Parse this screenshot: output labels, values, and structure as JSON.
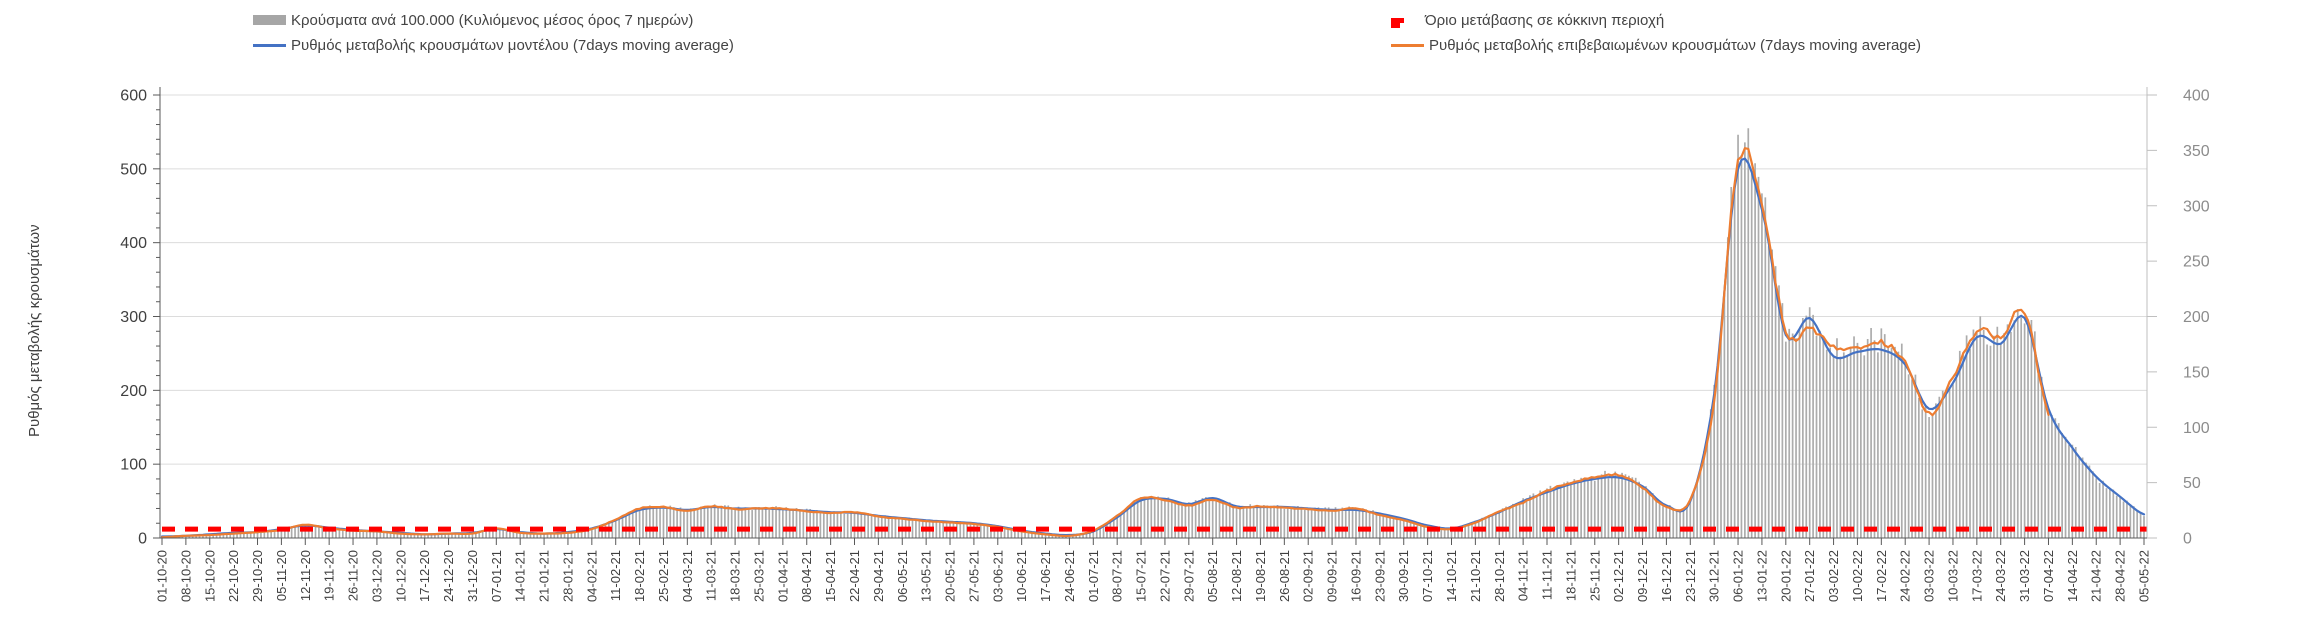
{
  "chart_data": {
    "type": "bar+line combo, dual axis",
    "title": "",
    "x_tick_dates": [
      "01-10-20",
      "08-10-20",
      "15-10-20",
      "22-10-20",
      "29-10-20",
      "05-11-20",
      "12-11-20",
      "19-11-20",
      "26-11-20",
      "03-12-20",
      "10-12-20",
      "17-12-20",
      "24-12-20",
      "31-12-20",
      "07-01-21",
      "14-01-21",
      "21-01-21",
      "28-01-21",
      "04-02-21",
      "11-02-21",
      "18-02-21",
      "25-02-21",
      "04-03-21",
      "11-03-21",
      "18-03-21",
      "25-03-21",
      "01-04-21",
      "08-04-21",
      "15-04-21",
      "22-04-21",
      "29-04-21",
      "06-05-21",
      "13-05-21",
      "20-05-21",
      "27-05-21",
      "03-06-21",
      "10-06-21",
      "17-06-21",
      "24-06-21",
      "01-07-21",
      "08-07-21",
      "15-07-21",
      "22-07-21",
      "29-07-21",
      "05-08-21",
      "12-08-21",
      "19-08-21",
      "26-08-21",
      "02-09-21",
      "09-09-21",
      "16-09-21",
      "23-09-21",
      "30-09-21",
      "07-10-21",
      "14-10-21",
      "21-10-21",
      "28-10-21",
      "04-11-21",
      "11-11-21",
      "18-11-21",
      "25-11-21",
      "02-12-21",
      "09-12-21",
      "16-12-21",
      "23-12-21",
      "30-12-21",
      "06-01-22",
      "13-01-22",
      "20-01-22",
      "27-01-22",
      "03-02-22",
      "10-02-22",
      "17-02-22",
      "24-02-22",
      "03-03-22",
      "10-03-22",
      "17-03-22",
      "24-03-22",
      "31-03-22",
      "07-04-22",
      "14-04-22",
      "21-04-22",
      "28-04-22",
      "05-05-22"
    ],
    "series": [
      {
        "name": "Κρούσματα ανά 100.000 (Κυλιόμενος μέσος όρος 7 ημερών)",
        "type": "bar",
        "axis": "right",
        "color": "#ACACAC",
        "values": [
          1,
          2,
          3,
          5,
          5,
          8,
          12,
          9,
          7,
          6,
          5,
          3,
          4,
          4,
          8,
          5,
          4,
          5,
          9,
          16,
          26,
          28,
          26,
          29,
          27,
          27,
          27,
          25,
          23,
          23,
          20,
          18,
          16,
          15,
          13,
          11,
          7,
          4,
          2,
          6,
          20,
          36,
          35,
          31,
          36,
          29,
          29,
          28,
          27,
          26,
          27,
          22,
          17,
          11,
          9,
          15,
          24,
          34,
          43,
          50,
          55,
          57,
          47,
          29,
          35,
          132,
          348,
          305,
          188,
          198,
          172,
          174,
          178,
          160,
          117,
          146,
          188,
          182,
          208,
          118,
          82,
          56,
          38,
          21
        ]
      },
      {
        "name": "Ρυθμός μεταβολής κρουσμάτων μοντέλου (7days moving average)",
        "type": "line",
        "axis": "left",
        "color": "#4472C4",
        "values": [
          2,
          3,
          5,
          7,
          8,
          12,
          17,
          14,
          11,
          9,
          7,
          5,
          6,
          7,
          12,
          8,
          6,
          8,
          13,
          24,
          38,
          41,
          38,
          42,
          40,
          40,
          39,
          37,
          35,
          34,
          30,
          27,
          24,
          22,
          20,
          16,
          10,
          6,
          4,
          9,
          28,
          51,
          53,
          46,
          54,
          43,
          42,
          42,
          40,
          38,
          38,
          33,
          26,
          17,
          13,
          22,
          35,
          50,
          62,
          73,
          80,
          82,
          70,
          44,
          50,
          195,
          500,
          445,
          275,
          298,
          246,
          252,
          255,
          235,
          175,
          210,
          272,
          263,
          298,
          175,
          122,
          83,
          56,
          32
        ]
      },
      {
        "name": "Ρυθμός μεταβολής επιβεβαιωμένων κρουσμάτων (7days moving average)",
        "type": "line",
        "axis": "left",
        "color": "#ED7D31",
        "values": [
          1,
          3,
          4,
          6,
          8,
          11,
          18,
          13,
          10,
          9,
          6,
          5,
          6,
          6,
          13,
          7,
          6,
          7,
          12,
          25,
          40,
          42,
          37,
          43,
          39,
          40,
          40,
          36,
          34,
          35,
          29,
          26,
          23,
          21,
          19,
          15,
          9,
          5,
          3,
          10,
          30,
          54,
          51,
          44,
          52,
          41,
          43,
          41,
          39,
          37,
          40,
          31,
          24,
          15,
          12,
          21,
          36,
          48,
          64,
          75,
          82,
          85,
          68,
          42,
          52,
          185,
          510,
          455,
          280,
          283,
          260,
          257,
          265,
          238,
          168,
          218,
          280,
          272,
          308,
          168,
          null,
          null,
          null,
          null
        ]
      },
      {
        "name": "Όριο μετάβασης σε κόκκινη περιοχή",
        "type": "threshold",
        "axis": "left",
        "color": "#FF0000",
        "value": 12
      }
    ],
    "axes": {
      "left": {
        "label": "Ρυθμός μεταβολής κρουσμάτων",
        "min": 0,
        "max": 600,
        "step": 100,
        "minor_step": 20,
        "ticks": [
          "0",
          "100",
          "200",
          "300",
          "400",
          "500",
          "600"
        ]
      },
      "right": {
        "label": "",
        "min": 0,
        "max": 400,
        "step": 50,
        "ticks": [
          "0",
          "50",
          "100",
          "150",
          "200",
          "250",
          "300",
          "350",
          "400"
        ]
      }
    },
    "legend_position": "top",
    "grid": "horizontal, at left-axis 100s"
  },
  "colors": {
    "background": "#FFFFFF",
    "grid": "#DCDCDC",
    "axis_dark": "#595959",
    "axis_light": "#BFBFBF",
    "bar": "#ACACAC",
    "model_line": "#4472C4",
    "confirmed_line": "#ED7D31",
    "threshold_line": "#FF0000",
    "text": "#404040",
    "right_axis_text": "#8C8C8C"
  }
}
